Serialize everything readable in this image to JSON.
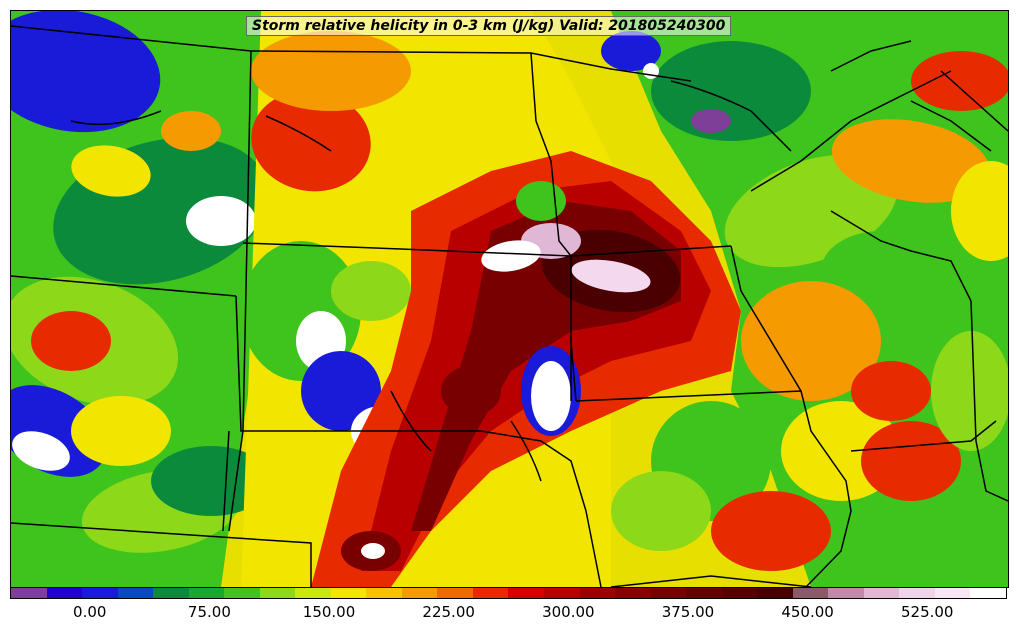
{
  "title": "Storm relative helicity in 0-3 km (J/kg) Valid: 201805240300",
  "colorbar": {
    "colors": [
      "#7d3f98",
      "#2200cc",
      "#1a1ad9",
      "#0a47c2",
      "#0b8a3c",
      "#16a835",
      "#3ec41c",
      "#8ed81a",
      "#c9e812",
      "#f2e600",
      "#f5c400",
      "#f59a00",
      "#f06a00",
      "#e82a00",
      "#d60000",
      "#b80000",
      "#9e0000",
      "#8a0000",
      "#780000",
      "#660000",
      "#560000",
      "#470000",
      "#8a5a6a",
      "#c08aa8",
      "#e0b8d6",
      "#f0d4ea",
      "#f8e6f4",
      "#ffffff"
    ],
    "min": -50,
    "max": 575,
    "tick_values": [
      0,
      75,
      150,
      225,
      300,
      375,
      450,
      525
    ],
    "tick_labels": [
      "0.00",
      "75.00",
      "150.00",
      "225.00",
      "300.00",
      "375.00",
      "450.00",
      "525.00"
    ]
  },
  "map": {
    "background_color": "#e6df00",
    "boundary_color": "#000000",
    "palette": {
      "white": "#ffffff",
      "purple": "#7d3f98",
      "blue": "#1a1ad9",
      "darkgreen": "#0b8a3c",
      "green": "#3ec41c",
      "lime": "#8ed81a",
      "yellow": "#f2e600",
      "orange": "#f59a00",
      "red": "#e82a00",
      "crimson": "#b80000",
      "maroon": "#780000",
      "darkmaroon": "#4a0000",
      "pink": "#e0b8d6",
      "lightpink": "#f4d8ee"
    }
  }
}
